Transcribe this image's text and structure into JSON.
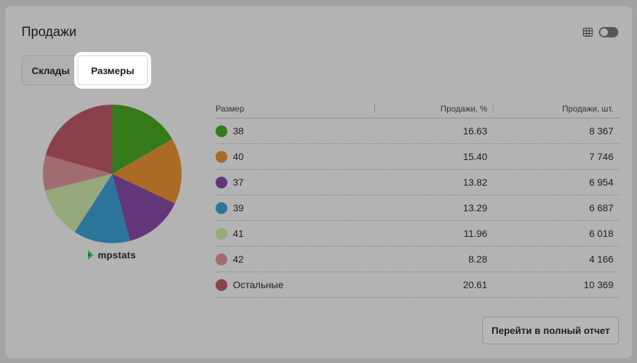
{
  "header": {
    "title": "Продажи"
  },
  "tabs": [
    {
      "label": "Склады",
      "active": false
    },
    {
      "label": "Размеры",
      "active": true
    }
  ],
  "brand": {
    "name": "mpstats"
  },
  "table": {
    "columns": [
      "Размер",
      "Продажи, %",
      "Продажи, шт."
    ],
    "rows": [
      {
        "label": "38",
        "pct": "16.63",
        "qty": "8 367",
        "color": "#357b1c"
      },
      {
        "label": "40",
        "pct": "15.40",
        "qty": "7 746",
        "color": "#ab6b24"
      },
      {
        "label": "37",
        "pct": "13.82",
        "qty": "6 954",
        "color": "#633679"
      },
      {
        "label": "39",
        "pct": "13.29",
        "qty": "6 687",
        "color": "#2c769b"
      },
      {
        "label": "41",
        "pct": "11.96",
        "qty": "6 018",
        "color": "#96a97c"
      },
      {
        "label": "42",
        "pct": "8.28",
        "qty": "4 166",
        "color": "#a16b72"
      },
      {
        "label": "Остальные",
        "pct": "20.61",
        "qty": "10 369",
        "color": "#8a414b"
      }
    ]
  },
  "chart_data": {
    "type": "pie",
    "categories": [
      "38",
      "40",
      "37",
      "39",
      "41",
      "42",
      "Остальные"
    ],
    "values": [
      16.63,
      15.4,
      13.82,
      13.29,
      11.96,
      8.28,
      20.61
    ],
    "colors": [
      "#357b1c",
      "#ab6b24",
      "#633679",
      "#2c769b",
      "#96a97c",
      "#a16b72",
      "#8a414b"
    ]
  },
  "actions": {
    "full_report_label": "Перейти в полный отчет"
  },
  "view_toggle": {
    "on": false
  }
}
